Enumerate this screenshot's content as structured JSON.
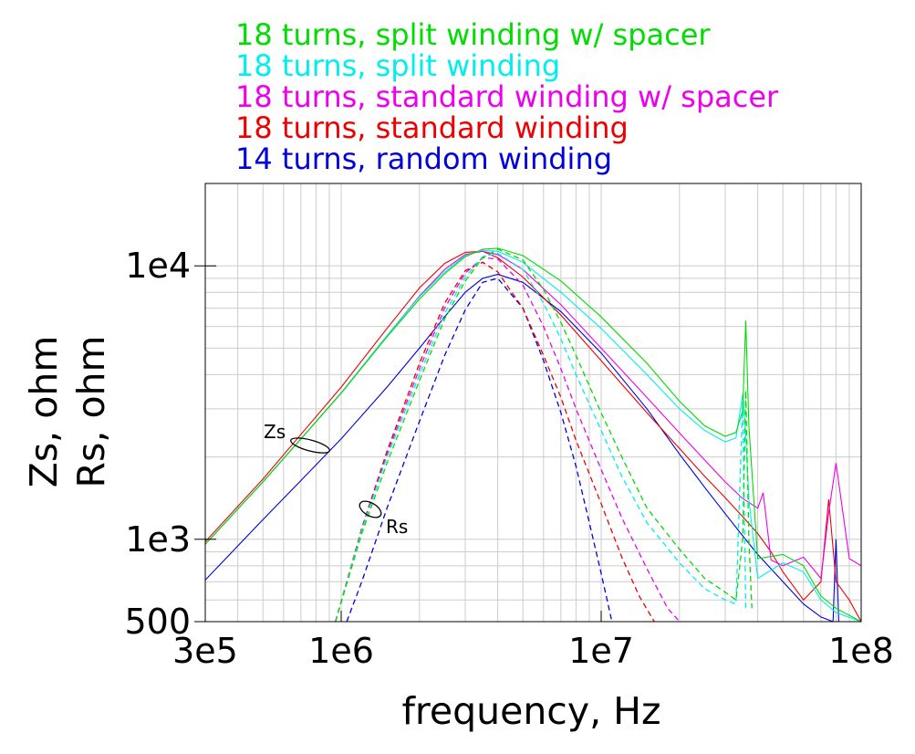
{
  "chart_data": {
    "type": "line",
    "xlabel": "frequency, Hz",
    "ylabel": [
      "Zs, ohm",
      "Rs, ohm"
    ],
    "xscale": "log",
    "yscale": "log",
    "xlim": [
      300000,
      100000000
    ],
    "ylim": [
      500,
      20000
    ],
    "x_ticks": [
      {
        "value": 300000,
        "label": "3e5"
      },
      {
        "value": 1000000,
        "label": "1e6"
      },
      {
        "value": 10000000,
        "label": "1e7"
      },
      {
        "value": 100000000,
        "label": "1e8"
      }
    ],
    "y_ticks": [
      {
        "value": 500,
        "label": "500"
      },
      {
        "value": 1000,
        "label": "1e3"
      },
      {
        "value": 10000,
        "label": "1e4"
      }
    ],
    "grid": true,
    "legend_position": "top, above plot",
    "annotations": [
      {
        "text": "Zs",
        "x": 800000,
        "y": 2350
      },
      {
        "text": "Rs",
        "x": 1300000,
        "y": 1180
      }
    ],
    "series": [
      {
        "name": "18 turns, split winding w/ spacer",
        "color": "#00dd00",
        "Zs": {
          "x": [
            300000,
            500000,
            700000,
            1000000,
            1500000,
            2000000,
            2500000,
            3000000,
            3500000,
            4000000,
            5000000,
            7000000,
            10000000,
            15000000,
            20000000,
            25000000,
            30000000,
            33000000,
            35000000,
            36000000,
            37000000,
            40000000,
            50000000,
            60000000,
            70000000,
            80000000,
            100000000
          ],
          "y": [
            960,
            1620,
            2330,
            3420,
            5500,
            7550,
            9350,
            10800,
            11500,
            11600,
            10900,
            8800,
            6500,
            4400,
            3200,
            2600,
            2380,
            2460,
            2950,
            6300,
            2600,
            850,
            880,
            800,
            620,
            560,
            500
          ]
        },
        "Rs": {
          "x": [
            950000,
            1200000,
            1500000,
            2000000,
            2500000,
            3000000,
            3500000,
            4000000,
            5000000,
            6000000,
            7000000,
            8000000,
            10000000,
            12000000,
            15000000,
            20000000,
            25000000,
            30000000,
            33000000,
            35000000,
            36000000,
            37000000,
            38000000
          ],
          "y": [
            500,
            1050,
            1900,
            3800,
            6400,
            8800,
            10700,
            11500,
            10500,
            8200,
            6200,
            4700,
            2900,
            2000,
            1300,
            920,
            720,
            640,
            600,
            1000,
            3500,
            1000,
            560
          ]
        }
      },
      {
        "name": "18 turns, split winding",
        "color": "#00eeee",
        "Zs": {
          "x": [
            300000,
            500000,
            700000,
            1000000,
            1500000,
            2000000,
            2500000,
            3000000,
            3500000,
            4000000,
            5000000,
            7000000,
            10000000,
            15000000,
            20000000,
            25000000,
            30000000,
            33000000,
            35000000,
            36000000,
            37000000,
            40000000,
            50000000,
            60000000,
            70000000,
            80000000,
            100000000
          ],
          "y": [
            960,
            1620,
            2330,
            3430,
            5550,
            7700,
            9500,
            10900,
            11400,
            11300,
            10300,
            8000,
            5900,
            4000,
            3000,
            2500,
            2270,
            2350,
            3400,
            2400,
            1400,
            720,
            820,
            760,
            600,
            540,
            500
          ]
        },
        "Rs": {
          "x": [
            950000,
            1200000,
            1500000,
            2000000,
            2500000,
            3000000,
            3500000,
            4000000,
            5000000,
            6000000,
            7000000,
            8000000,
            10000000,
            12000000,
            15000000,
            20000000,
            25000000,
            30000000,
            33000000,
            35000000,
            36000000
          ],
          "y": [
            500,
            1080,
            2000,
            4000,
            6700,
            9100,
            10800,
            11100,
            9700,
            7300,
            5400,
            4000,
            2500,
            1700,
            1150,
            820,
            660,
            600,
            580,
            3200,
            560
          ]
        }
      },
      {
        "name": "18 turns, standard winding w/ spacer",
        "color": "#ee00ee",
        "Zs": {
          "x": [
            300000,
            500000,
            700000,
            1000000,
            1500000,
            2000000,
            2500000,
            3000000,
            3500000,
            4000000,
            5000000,
            7000000,
            10000000,
            15000000,
            20000000,
            25000000,
            30000000,
            35000000,
            40000000,
            42000000,
            45000000,
            50000000,
            60000000,
            70000000,
            75000000,
            80000000,
            90000000,
            100000000
          ],
          "y": [
            960,
            1620,
            2330,
            3430,
            5550,
            7750,
            9700,
            11000,
            11300,
            11000,
            9700,
            7200,
            5000,
            3300,
            2450,
            1950,
            1620,
            1410,
            1300,
            1480,
            840,
            800,
            860,
            720,
            1250,
            1900,
            850,
            800
          ]
        },
        "Rs": {
          "x": [
            950000,
            1200000,
            1500000,
            2000000,
            2500000,
            3000000,
            3500000,
            4000000,
            5000000,
            6000000,
            7000000,
            8000000,
            10000000,
            12000000,
            15000000,
            18000000,
            20000000
          ],
          "y": [
            500,
            1080,
            2050,
            4200,
            7000,
            9400,
            10700,
            10600,
            8500,
            6000,
            4200,
            3000,
            1800,
            1200,
            780,
            560,
            500
          ]
        }
      },
      {
        "name": "18 turns, standard winding",
        "color": "#ee0000",
        "Zs": {
          "x": [
            300000,
            500000,
            700000,
            1000000,
            1500000,
            2000000,
            2500000,
            3000000,
            3500000,
            4000000,
            5000000,
            7000000,
            10000000,
            15000000,
            20000000,
            25000000,
            30000000,
            35000000,
            40000000,
            45000000,
            50000000,
            60000000,
            70000000,
            75000000,
            80000000,
            90000000,
            100000000
          ],
          "y": [
            980,
            1660,
            2420,
            3600,
            5900,
            8300,
            10200,
            11200,
            11300,
            10700,
            9100,
            6600,
            4500,
            2900,
            2150,
            1700,
            1420,
            1210,
            1050,
            900,
            760,
            600,
            700,
            1400,
            700,
            600,
            500
          ]
        },
        "Rs": {
          "x": [
            950000,
            1200000,
            1500000,
            2000000,
            2500000,
            3000000,
            3500000,
            4000000,
            5000000,
            6000000,
            7000000,
            8000000,
            10000000,
            12000000,
            14000000,
            16000000
          ],
          "y": [
            500,
            1100,
            2100,
            4400,
            7300,
            9600,
            10300,
            9500,
            7000,
            4700,
            3300,
            2300,
            1350,
            860,
            620,
            500
          ]
        }
      },
      {
        "name": "14 turns, random winding",
        "color": "#0000dd",
        "Zs": {
          "x": [
            300000,
            500000,
            700000,
            1000000,
            1500000,
            2000000,
            2500000,
            3000000,
            3500000,
            4000000,
            5000000,
            7000000,
            10000000,
            15000000,
            20000000,
            25000000,
            30000000,
            35000000,
            40000000,
            50000000,
            60000000,
            70000000,
            78000000,
            80000000,
            82000000,
            90000000,
            100000000
          ],
          "y": [
            710,
            1180,
            1640,
            2330,
            3600,
            5000,
            6500,
            8000,
            9000,
            9300,
            8700,
            6800,
            4800,
            3000,
            2050,
            1550,
            1240,
            1030,
            880,
            700,
            580,
            520,
            500,
            1000,
            500,
            500,
            500
          ]
        },
        "Rs": {
          "x": [
            1050000,
            1200000,
            1500000,
            2000000,
            2500000,
            3000000,
            3500000,
            4000000,
            5000000,
            6000000,
            7000000,
            8000000,
            9000000,
            10000000,
            11000000
          ],
          "y": [
            500,
            700,
            1300,
            2700,
            4700,
            6900,
            8700,
            9000,
            7000,
            4500,
            2900,
            1850,
            1150,
            750,
            500
          ]
        }
      }
    ]
  }
}
